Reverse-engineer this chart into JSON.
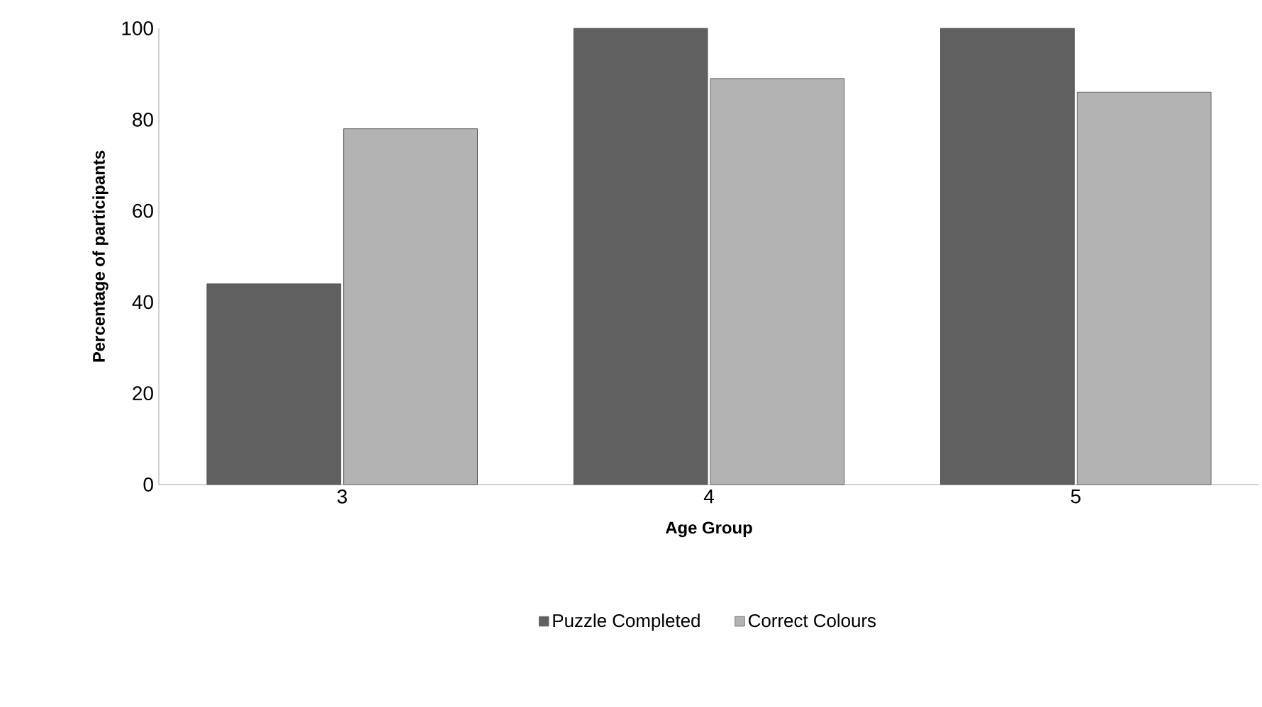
{
  "chart_data": {
    "type": "bar",
    "xlabel": "Age Group",
    "ylabel": "Percentage of participants",
    "categories": [
      "3",
      "4",
      "5"
    ],
    "series": [
      {
        "name": "Puzzle Completed",
        "color": "#606060",
        "values": [
          44,
          100,
          100
        ]
      },
      {
        "name": "Correct Colours",
        "color": "#b3b3b3",
        "values": [
          78,
          89,
          86
        ]
      }
    ],
    "ylim": [
      0,
      100
    ],
    "yticks": [
      0,
      20,
      40,
      60,
      80,
      100
    ],
    "grid": false,
    "legend": "bottom"
  }
}
